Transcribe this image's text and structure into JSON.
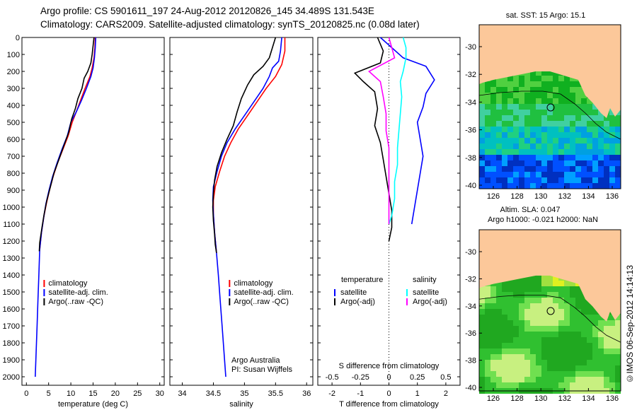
{
  "header": {
    "line1": "Argo profile: CS 5901611_197 24-Aug-2012 20120826_145 34.489S 131.543E",
    "line2": "Climatology: CARS2009. Satellite-adjusted climatology: synTS_20120825.nc (0.08d later)"
  },
  "footer": {
    "vertical_label": "©IMOS 06-Sep-2012 14:14:13"
  },
  "chart_data": [
    {
      "type": "line",
      "id": "temperature",
      "xlabel": "temperature (deg C)",
      "xlim": [
        -1,
        31
      ],
      "ylim": [
        0,
        2050
      ],
      "xticks": [
        0,
        5,
        10,
        15,
        20,
        25,
        30
      ],
      "yticks": [
        0,
        100,
        200,
        300,
        400,
        500,
        600,
        700,
        800,
        900,
        1000,
        1100,
        1200,
        1300,
        1400,
        1500,
        1600,
        1700,
        1800,
        1900,
        2000
      ],
      "legend": [
        "climatology",
        "satellite-adj. clim.",
        "Argo(..raw -QC)"
      ],
      "series": [
        {
          "name": "climatology",
          "color": "#ff0000",
          "points": [
            [
              15.5,
              0
            ],
            [
              15.4,
              60
            ],
            [
              15.2,
              120
            ],
            [
              14.8,
              180
            ],
            [
              14.3,
              230
            ],
            [
              13.2,
              300
            ],
            [
              12.2,
              370
            ],
            [
              11.2,
              440
            ],
            [
              10.3,
              500
            ],
            [
              9.4,
              580
            ],
            [
              8.2,
              660
            ],
            [
              7.0,
              740
            ],
            [
              6.0,
              820
            ],
            [
              5.2,
              900
            ],
            [
              4.5,
              980
            ],
            [
              3.9,
              1060
            ],
            [
              3.4,
              1150
            ],
            [
              3.0,
              1250
            ]
          ]
        },
        {
          "name": "satellite-adj. clim.",
          "color": "#0000ff",
          "points": [
            [
              15.6,
              0
            ],
            [
              15.5,
              60
            ],
            [
              15.3,
              120
            ],
            [
              15.0,
              180
            ],
            [
              14.5,
              230
            ],
            [
              13.5,
              300
            ],
            [
              12.4,
              370
            ],
            [
              11.2,
              440
            ],
            [
              10.0,
              500
            ],
            [
              9.2,
              580
            ],
            [
              8.0,
              660
            ],
            [
              6.9,
              740
            ],
            [
              5.9,
              820
            ],
            [
              5.1,
              900
            ],
            [
              4.4,
              980
            ],
            [
              3.9,
              1060
            ],
            [
              3.4,
              1150
            ],
            [
              3.0,
              1250
            ],
            [
              2.8,
              1400
            ],
            [
              2.6,
              1550
            ],
            [
              2.4,
              1700
            ],
            [
              2.2,
              1850
            ],
            [
              2.0,
              2000
            ]
          ]
        },
        {
          "name": "Argo(..raw -QC)",
          "color": "#000000",
          "points": [
            [
              15.2,
              0
            ],
            [
              15.0,
              50
            ],
            [
              14.8,
              100
            ],
            [
              14.5,
              150
            ],
            [
              13.8,
              200
            ],
            [
              13.0,
              240
            ],
            [
              12.5,
              300
            ],
            [
              11.6,
              360
            ],
            [
              11.0,
              420
            ],
            [
              10.2,
              480
            ],
            [
              9.5,
              560
            ],
            [
              8.4,
              640
            ],
            [
              7.3,
              720
            ],
            [
              6.2,
              800
            ],
            [
              5.4,
              880
            ],
            [
              4.6,
              960
            ],
            [
              4.0,
              1040
            ],
            [
              3.5,
              1120
            ],
            [
              3.0,
              1210
            ],
            [
              2.9,
              1260
            ]
          ]
        }
      ]
    },
    {
      "type": "line",
      "id": "salinity",
      "xlabel": "salinity",
      "xlim": [
        33.8,
        36.1
      ],
      "ylim": [
        0,
        2050
      ],
      "xticks": [
        34,
        34.5,
        35,
        35.5,
        36
      ],
      "legend": [
        "climatology",
        "satellite-adj. clim.",
        "Argo(..raw -QC)"
      ],
      "annotations": [
        "Argo Australia",
        "PI: Susan Wijffels"
      ],
      "series": [
        {
          "name": "climatology",
          "color": "#ff0000",
          "points": [
            [
              35.65,
              0
            ],
            [
              35.65,
              80
            ],
            [
              35.6,
              160
            ],
            [
              35.5,
              230
            ],
            [
              35.35,
              300
            ],
            [
              35.2,
              380
            ],
            [
              35.05,
              460
            ],
            [
              34.9,
              540
            ],
            [
              34.78,
              620
            ],
            [
              34.68,
              700
            ],
            [
              34.6,
              790
            ],
            [
              34.53,
              880
            ],
            [
              34.5,
              960
            ],
            [
              34.5,
              1040
            ],
            [
              34.52,
              1150
            ],
            [
              34.55,
              1270
            ]
          ]
        },
        {
          "name": "satellite-adj. clim.",
          "color": "#0000ff",
          "points": [
            [
              35.6,
              0
            ],
            [
              35.58,
              80
            ],
            [
              35.55,
              140
            ],
            [
              35.45,
              180
            ],
            [
              35.4,
              230
            ],
            [
              35.3,
              300
            ],
            [
              35.15,
              380
            ],
            [
              35.0,
              460
            ],
            [
              34.85,
              540
            ],
            [
              34.72,
              620
            ],
            [
              34.63,
              700
            ],
            [
              34.56,
              790
            ],
            [
              34.5,
              880
            ],
            [
              34.49,
              960
            ],
            [
              34.5,
              1040
            ],
            [
              34.52,
              1150
            ],
            [
              34.55,
              1270
            ],
            [
              34.58,
              1400
            ],
            [
              34.61,
              1550
            ],
            [
              34.64,
              1700
            ],
            [
              34.67,
              1850
            ],
            [
              34.7,
              2000
            ]
          ]
        },
        {
          "name": "Argo(..raw -QC)",
          "color": "#000000",
          "points": [
            [
              35.5,
              0
            ],
            [
              35.45,
              60
            ],
            [
              35.4,
              120
            ],
            [
              35.3,
              170
            ],
            [
              35.15,
              220
            ],
            [
              35.05,
              280
            ],
            [
              34.95,
              360
            ],
            [
              34.88,
              440
            ],
            [
              34.82,
              520
            ],
            [
              34.72,
              600
            ],
            [
              34.63,
              680
            ],
            [
              34.56,
              760
            ],
            [
              34.52,
              840
            ],
            [
              34.5,
              920
            ],
            [
              34.49,
              1000
            ],
            [
              34.5,
              1080
            ],
            [
              34.52,
              1160
            ],
            [
              34.53,
              1220
            ],
            [
              34.55,
              1270
            ]
          ]
        }
      ]
    },
    {
      "type": "line",
      "id": "difference",
      "xlabel": "T difference from climatology",
      "top_label": "S difference from climatology",
      "xlim": [
        -2.5,
        2.5
      ],
      "xticks": [
        -2,
        -1,
        0,
        1,
        2
      ],
      "top_ticks": [
        "-0.5",
        "-0.25",
        "0",
        "0.25",
        "0.5"
      ],
      "legend_headings": [
        "temperature",
        "salinity"
      ],
      "legend": [
        "satellite",
        "Argo(-adj)",
        "satellite",
        "Argo(-adj)"
      ],
      "series": [
        {
          "name": "temperature satellite",
          "color": "#0000ff",
          "points": [
            [
              -0.3,
              0
            ],
            [
              0.1,
              60
            ],
            [
              0.5,
              120
            ],
            [
              1.3,
              170
            ],
            [
              1.6,
              250
            ],
            [
              1.3,
              330
            ],
            [
              1.2,
              410
            ],
            [
              1.0,
              500
            ],
            [
              1.1,
              600
            ],
            [
              1.2,
              700
            ],
            [
              1.1,
              800
            ],
            [
              1.0,
              900
            ],
            [
              0.9,
              1000
            ],
            [
              0.8,
              1100
            ]
          ]
        },
        {
          "name": "temperature Argo(-adj)",
          "color": "#000000",
          "points": [
            [
              -0.4,
              0
            ],
            [
              -0.2,
              80
            ],
            [
              -0.3,
              150
            ],
            [
              -1.2,
              210
            ],
            [
              -0.9,
              260
            ],
            [
              -0.5,
              320
            ],
            [
              -0.4,
              420
            ],
            [
              -0.5,
              520
            ],
            [
              -0.3,
              620
            ],
            [
              -0.2,
              720
            ],
            [
              -0.1,
              820
            ],
            [
              0.0,
              920
            ],
            [
              0.1,
              1020
            ],
            [
              0.1,
              1120
            ],
            [
              0.0,
              1200
            ]
          ]
        },
        {
          "name": "salinity satellite",
          "color": "#00ffff",
          "points": [
            [
              0.5,
              0
            ],
            [
              0.6,
              60
            ],
            [
              0.6,
              120
            ],
            [
              0.5,
              200
            ],
            [
              0.4,
              260
            ],
            [
              0.45,
              350
            ],
            [
              0.4,
              450
            ],
            [
              0.35,
              550
            ],
            [
              0.3,
              650
            ],
            [
              0.3,
              750
            ],
            [
              0.2,
              850
            ],
            [
              0.2,
              950
            ],
            [
              0.1,
              1050
            ],
            [
              0.0,
              1100
            ]
          ]
        },
        {
          "name": "salinity Argo(-adj)",
          "color": "#ff00ff",
          "points": [
            [
              0.0,
              0
            ],
            [
              0.1,
              60
            ],
            [
              0.2,
              120
            ],
            [
              -0.7,
              200
            ],
            [
              -0.3,
              260
            ],
            [
              -0.2,
              350
            ],
            [
              -0.1,
              450
            ],
            [
              -0.1,
              550
            ],
            [
              0.0,
              650
            ],
            [
              0.0,
              750
            ],
            [
              0.0,
              850
            ],
            [
              0.0,
              950
            ],
            [
              0.0,
              1050
            ],
            [
              0.0,
              1100
            ]
          ]
        }
      ]
    }
  ],
  "maps": [
    {
      "id": "sst-map",
      "title": "sat. SST: 15 Argo: 15.1",
      "xticks": [
        "126",
        "128",
        "130",
        "132",
        "134",
        "136"
      ],
      "yticks": [
        "-30",
        "-32",
        "-34",
        "-36",
        "-38",
        "-40"
      ],
      "colors": {
        "land": "#fcc89a",
        "outline": "#000000"
      }
    },
    {
      "id": "sla-map",
      "title1": "Altim. SLA: 0.047",
      "title2": "Argo h1000: -0.021 h2000: NaN",
      "xticks": [
        "126",
        "128",
        "130",
        "132",
        "134",
        "136"
      ],
      "yticks": [
        "-30",
        "-32",
        "-34",
        "-36",
        "-38",
        "-40"
      ],
      "colors": {
        "land": "#fcc89a",
        "outline": "#000000"
      }
    }
  ]
}
